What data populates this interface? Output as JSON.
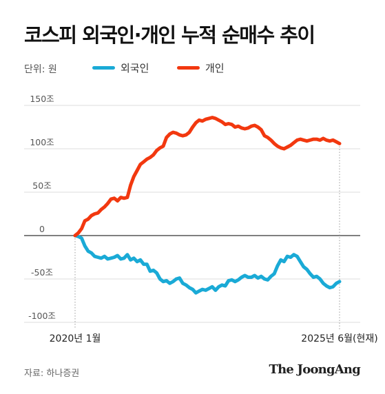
{
  "title": "코스피 외국인·개인 누적 순매수 추이",
  "unit_label": "단위: 원",
  "source": "자료: 하나증권",
  "logo": "The JoongAng",
  "colors": {
    "foreign": "#1aaad6",
    "individual": "#f2380f",
    "axis": "#333333",
    "grid": "#dddddd",
    "tick_text": "#555555"
  },
  "chart_data": {
    "type": "line",
    "title": "코스피 외국인·개인 누적 순매수 추이",
    "xlabel": "",
    "ylabel": "",
    "ylim": [
      -100,
      150
    ],
    "yticks": [
      150,
      100,
      50,
      0,
      -50,
      -100
    ],
    "ytick_labels": [
      "150조",
      "100조",
      "50조",
      "0",
      "-50조",
      "-100조"
    ],
    "x_tick_labels": [
      "2020년 1월",
      "2025년 6월(현재)"
    ],
    "x_range": [
      "2020-01",
      "2025-06"
    ],
    "grid": true,
    "legend": "top-left",
    "series": [
      {
        "name": "외국인",
        "key": "foreign",
        "values": [
          0,
          -1,
          -3,
          -12,
          -18,
          -20,
          -24,
          -25,
          -26,
          -24,
          -27,
          -26,
          -25,
          -23,
          -27,
          -26,
          -22,
          -28,
          -26,
          -30,
          -28,
          -33,
          -33,
          -41,
          -40,
          -43,
          -50,
          -53,
          -52,
          -55,
          -53,
          -50,
          -49,
          -55,
          -57,
          -60,
          -62,
          -66,
          -64,
          -62,
          -63,
          -61,
          -59,
          -63,
          -59,
          -57,
          -58,
          -52,
          -51,
          -53,
          -51,
          -48,
          -46,
          -48,
          -48,
          -46,
          -49,
          -47,
          -50,
          -51,
          -47,
          -44,
          -35,
          -28,
          -30,
          -24,
          -25,
          -22,
          -24,
          -30,
          -36,
          -39,
          -44,
          -48,
          -47,
          -50,
          -55,
          -58,
          -60,
          -59,
          -55,
          -53
        ]
      },
      {
        "name": "개인",
        "key": "individual",
        "values": [
          0,
          3,
          8,
          17,
          19,
          23,
          25,
          26,
          30,
          33,
          37,
          42,
          43,
          40,
          44,
          43,
          44,
          58,
          68,
          75,
          82,
          85,
          88,
          90,
          93,
          98,
          101,
          103,
          113,
          117,
          119,
          118,
          116,
          115,
          116,
          119,
          125,
          130,
          133,
          132,
          134,
          135,
          136,
          135,
          133,
          131,
          128,
          129,
          128,
          125,
          126,
          124,
          123,
          124,
          126,
          127,
          125,
          122,
          115,
          113,
          110,
          106,
          103,
          101,
          100,
          102,
          104,
          107,
          110,
          111,
          110,
          109,
          110,
          111,
          111,
          110,
          112,
          110,
          109,
          110,
          108,
          106
        ]
      }
    ]
  }
}
